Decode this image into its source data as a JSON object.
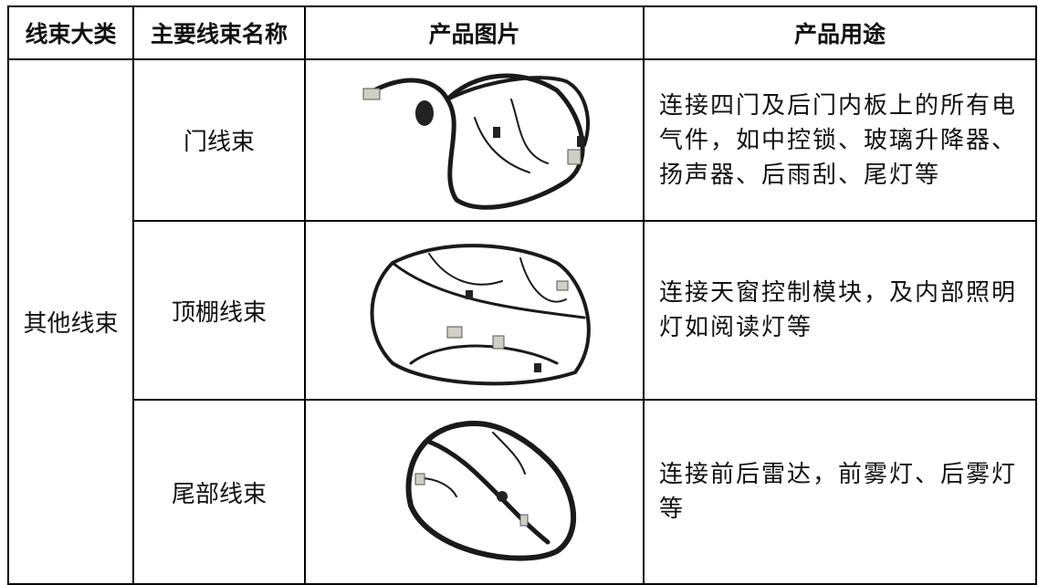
{
  "table": {
    "header": [
      "线束大类",
      "主要线束名称",
      "产品图片",
      "产品用途"
    ],
    "group": "其他线束",
    "rows": [
      {
        "name": "门线束",
        "use": "连接四门及后门内板上的所有电气件，如中控锁、玻璃升降器、扬声器、后雨刮、尾灯等"
      },
      {
        "name": "顶棚线束",
        "use": "连接天窗控制模块，及内部照明灯如阅读灯等"
      },
      {
        "name": "尾部线束",
        "use": "连接前后雷达，前雾灯、后雾灯等"
      }
    ]
  }
}
